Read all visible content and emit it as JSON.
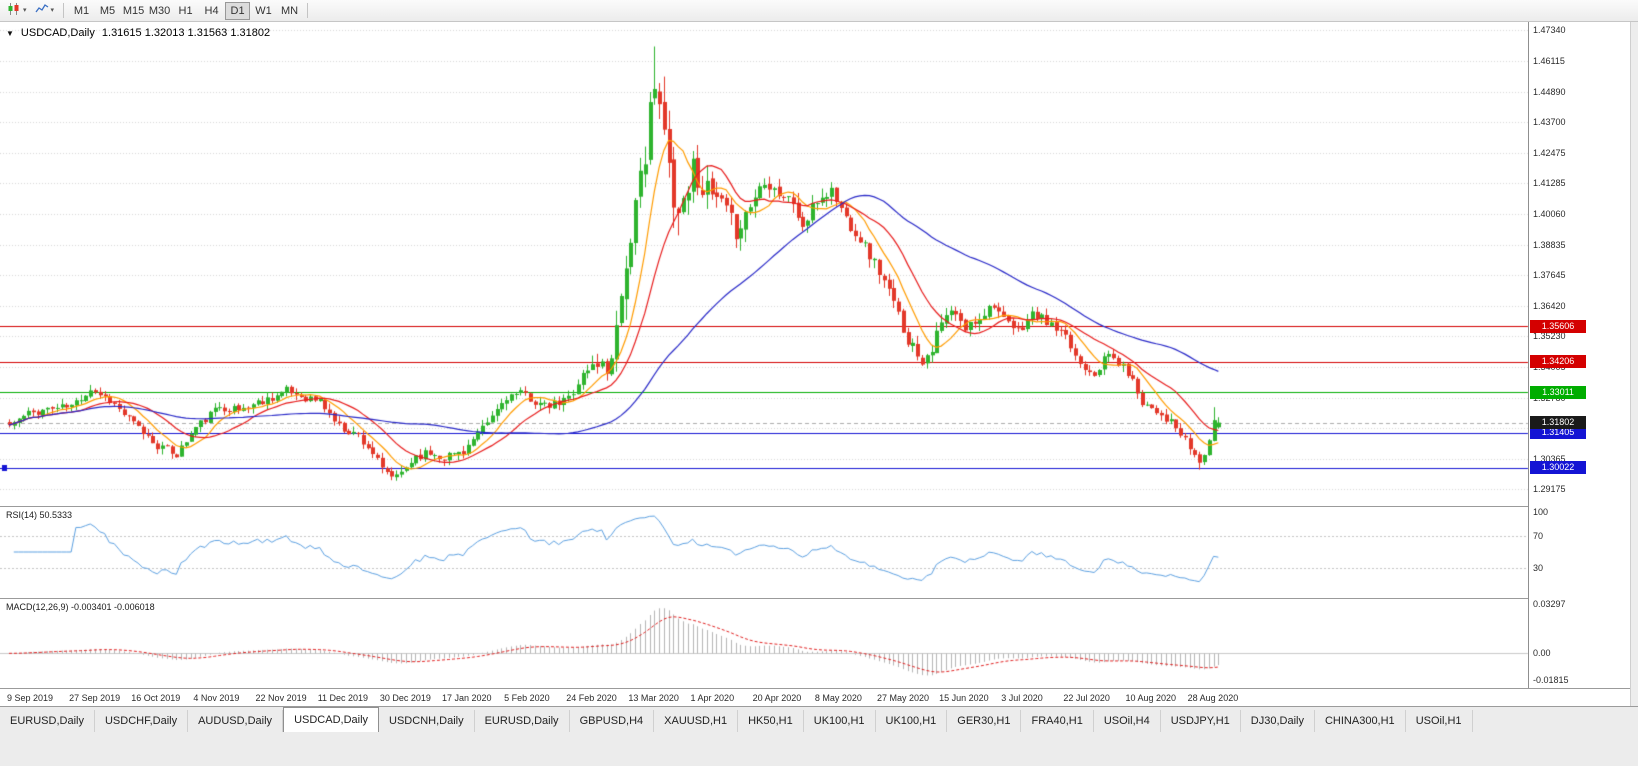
{
  "toolbar": {
    "timeframes": [
      "M1",
      "M5",
      "M15",
      "M30",
      "H1",
      "H4",
      "D1",
      "W1",
      "MN"
    ],
    "active_timeframe": "D1"
  },
  "chart": {
    "collapse_icon": "▼",
    "title_symbol": "USDCAD,Daily",
    "title_ohlc": "1.31615 1.32013 1.31563 1.31802"
  },
  "price_axis": {
    "ticks": [
      "1.47340",
      "1.46115",
      "1.44890",
      "1.43700",
      "1.42475",
      "1.41285",
      "1.40060",
      "1.38835",
      "1.37645",
      "1.36420",
      "1.35230",
      "1.34005",
      "1.32780",
      "1.31590",
      "1.30365",
      "1.29175"
    ]
  },
  "x_axis": {
    "label_bar_step": 13,
    "labels": [
      "9 Sep 2019",
      "27 Sep 2019",
      "16 Oct 2019",
      "4 Nov 2019",
      "22 Nov 2019",
      "11 Dec 2019",
      "30 Dec 2019",
      "17 Jan 2020",
      "5 Feb 2020",
      "24 Feb 2020",
      "13 Mar 2020",
      "1 Apr 2020",
      "20 Apr 2020",
      "8 May 2020",
      "27 May 2020",
      "15 Jun 2020",
      "3 Jul 2020",
      "22 Jul 2020",
      "10 Aug 2020",
      "28 Aug 2020"
    ]
  },
  "tabs": {
    "active_index": 3,
    "items": [
      "EURUSD,Daily",
      "USDCHF,Daily",
      "AUDUSD,Daily",
      "USDCAD,Daily",
      "USDCNH,Daily",
      "EURUSD,Daily",
      "GBPUSD,H4",
      "XAUUSD,H1",
      "HK50,H1",
      "UK100,H1",
      "UK100,H1",
      "GER30,H1",
      "FRA40,H1",
      "USOil,H4",
      "USDJPY,H1",
      "DJ30,Daily",
      "CHINA300,H1",
      "USOil,H1"
    ]
  },
  "chart_data": {
    "type": "candlestick",
    "symbol": "USDCAD",
    "timeframe": "Daily",
    "bar_count": 254,
    "ohlc": {
      "open": 1.31615,
      "high": 1.32013,
      "low": 1.31563,
      "close": 1.31802
    },
    "price_range": [
      1.285,
      1.4766
    ],
    "current_price": {
      "value": 1.31802,
      "label": "1.31802",
      "box_color": "#1a1a1a"
    },
    "hlines": [
      {
        "price": 1.35606,
        "label": "1.35606",
        "color": "#d40000"
      },
      {
        "price": 1.34206,
        "label": "1.34206",
        "color": "#d40000"
      },
      {
        "price": 1.33011,
        "label": "1.33011",
        "color": "#00ad00"
      },
      {
        "price": 1.31405,
        "label": "1.31405",
        "color": "#1414d4"
      },
      {
        "price": 1.30022,
        "label": "1.30022",
        "color": "#1414d4",
        "left_marker": true
      }
    ],
    "close_keypoints": [
      [
        0,
        1.317
      ],
      [
        4,
        1.3215
      ],
      [
        8,
        1.3235
      ],
      [
        13,
        1.3245
      ],
      [
        17,
        1.3315
      ],
      [
        21,
        1.327
      ],
      [
        26,
        1.3175
      ],
      [
        31,
        1.309
      ],
      [
        35,
        1.3055
      ],
      [
        39,
        1.316
      ],
      [
        44,
        1.3245
      ],
      [
        48,
        1.323
      ],
      [
        52,
        1.326
      ],
      [
        58,
        1.3305
      ],
      [
        62,
        1.328
      ],
      [
        65,
        1.3265
      ],
      [
        69,
        1.3165
      ],
      [
        73,
        1.313
      ],
      [
        76,
        1.306
      ],
      [
        78,
        1.299
      ],
      [
        81,
        1.296
      ],
      [
        85,
        1.305
      ],
      [
        88,
        1.306
      ],
      [
        91,
        1.3045
      ],
      [
        95,
        1.307
      ],
      [
        99,
        1.315
      ],
      [
        104,
        1.3285
      ],
      [
        108,
        1.329
      ],
      [
        112,
        1.324
      ],
      [
        115,
        1.3255
      ],
      [
        117,
        1.328
      ],
      [
        120,
        1.337
      ],
      [
        123,
        1.342
      ],
      [
        125,
        1.339
      ],
      [
        127,
        1.356
      ],
      [
        129,
        1.383
      ],
      [
        130,
        1.385
      ],
      [
        131,
        1.4
      ],
      [
        133,
        1.428
      ],
      [
        134,
        1.446
      ],
      [
        136,
        1.443
      ],
      [
        138,
        1.419
      ],
      [
        140,
        1.401
      ],
      [
        143,
        1.419
      ],
      [
        146,
        1.409
      ],
      [
        149,
        1.404
      ],
      [
        152,
        1.394
      ],
      [
        155,
        1.404
      ],
      [
        158,
        1.415
      ],
      [
        161,
        1.409
      ],
      [
        164,
        1.405
      ],
      [
        166,
        1.395
      ],
      [
        169,
        1.406
      ],
      [
        172,
        1.41
      ],
      [
        175,
        1.399
      ],
      [
        178,
        1.391
      ],
      [
        182,
        1.378
      ],
      [
        185,
        1.365
      ],
      [
        188,
        1.351
      ],
      [
        191,
        1.343
      ],
      [
        193,
        1.348
      ],
      [
        195,
        1.357
      ],
      [
        197,
        1.362
      ],
      [
        200,
        1.355
      ],
      [
        203,
        1.36
      ],
      [
        206,
        1.3655
      ],
      [
        208,
        1.358
      ],
      [
        211,
        1.354
      ],
      [
        214,
        1.361
      ],
      [
        217,
        1.358
      ],
      [
        221,
        1.351
      ],
      [
        224,
        1.3415
      ],
      [
        227,
        1.338
      ],
      [
        230,
        1.345
      ],
      [
        234,
        1.338
      ],
      [
        237,
        1.3265
      ],
      [
        240,
        1.323
      ],
      [
        243,
        1.318
      ],
      [
        246,
        1.3105
      ],
      [
        247,
        1.308
      ],
      [
        249,
        1.302
      ],
      [
        250,
        1.306
      ],
      [
        251,
        1.311
      ],
      [
        252,
        1.3175
      ],
      [
        253,
        1.318
      ]
    ],
    "range_keypoints": [
      [
        0,
        0.006
      ],
      [
        80,
        0.0065
      ],
      [
        120,
        0.0075
      ],
      [
        126,
        0.018
      ],
      [
        134,
        0.03
      ],
      [
        140,
        0.024
      ],
      [
        148,
        0.015
      ],
      [
        160,
        0.011
      ],
      [
        175,
        0.009
      ],
      [
        190,
        0.0095
      ],
      [
        210,
        0.007
      ],
      [
        235,
        0.0065
      ],
      [
        253,
        0.006
      ]
    ],
    "anchors": [
      {
        "i": 80,
        "low": 1.2952
      },
      {
        "i": 135,
        "high": 1.4669
      },
      {
        "i": 249,
        "low": 1.2994
      },
      {
        "i": 252,
        "high": 1.3241
      },
      {
        "i": 253,
        "ohlc": [
          1.31615,
          1.32013,
          1.31563,
          1.31802
        ]
      }
    ],
    "ma": [
      {
        "name": "ma-orange",
        "period": 8,
        "color": "#ff9c00"
      },
      {
        "name": "ma-red",
        "period": 16,
        "color": "#e81c1c"
      },
      {
        "name": "ma-blue",
        "period": 50,
        "color": "#2828c8"
      }
    ],
    "panels": {
      "rsi": {
        "label": "RSI(14) 50.5333",
        "period": 14,
        "value": 50.5333,
        "levels": [
          70,
          30
        ],
        "axis_ticks": [
          {
            "v": 100,
            "t": "100"
          },
          {
            "v": 70,
            "t": "70"
          },
          {
            "v": 30,
            "t": "30"
          }
        ]
      },
      "macd": {
        "label": "MACD(12,26,9) -0.003401 -0.006018",
        "fast": 12,
        "slow": 26,
        "signal": 9,
        "main_value": -0.003401,
        "signal_value": -0.006018,
        "axis_ticks": [
          {
            "v": 0.03297,
            "t": "0.03297"
          },
          {
            "v": 0,
            "t": "0.00"
          },
          {
            "v": -0.01815,
            "t": "-0.01815"
          }
        ]
      }
    },
    "colors": {
      "up": "#2eb42e",
      "down": "#e33829",
      "grid": "#d7d7d7",
      "bid_line": "#ababab",
      "rsi": "#5b9fe0",
      "macd_hist": "#b4b4b4",
      "macd_signal": "#e02020"
    }
  }
}
